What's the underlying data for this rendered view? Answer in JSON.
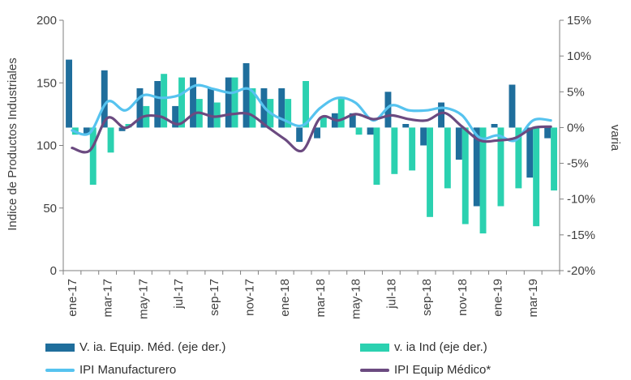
{
  "chart_data": {
    "type": "bar",
    "categories": [
      "ene-17",
      "feb-17",
      "mar-17",
      "abr-17",
      "may-17",
      "jun-17",
      "jul-17",
      "ago-17",
      "sep-17",
      "oct-17",
      "nov-17",
      "dic-17",
      "ene-18",
      "feb-18",
      "mar-18",
      "abr-18",
      "may-18",
      "jun-18",
      "jul-18",
      "ago-18",
      "sep-18",
      "oct-18",
      "nov-18",
      "dic-18",
      "ene-19",
      "feb-19",
      "mar-19",
      "abr-19"
    ],
    "x_tick_labels": [
      "ene-17",
      "mar-17",
      "may-17",
      "jul-17",
      "sep-17",
      "nov-17",
      "ene-18",
      "mar-18",
      "may-18",
      "jul-18",
      "sep-18",
      "nov-18",
      "ene-19",
      "mar-19"
    ],
    "left_axis": {
      "label": "Indice de Productos Industriales",
      "ylim": [
        0,
        200
      ],
      "ticks": [
        "0",
        "50",
        "100",
        "150",
        "200"
      ]
    },
    "right_axis": {
      "label": "varia",
      "ylim": [
        -20,
        15
      ],
      "ticks": [
        "-20%",
        "-15%",
        "-10%",
        "-5%",
        "0%",
        "5%",
        "10%",
        "15%"
      ]
    },
    "bar_series": [
      {
        "name": "V. ia. Equip. Méd. (eje der.)",
        "axis": "right",
        "color": "#1f6e9c",
        "values": [
          9.5,
          -1.0,
          8.0,
          -0.5,
          5.5,
          6.5,
          3.0,
          7.0,
          5.5,
          7.0,
          9.0,
          5.5,
          5.5,
          -2.0,
          -1.5,
          2.0,
          2.0,
          -1.0,
          5.0,
          0.5,
          -2.5,
          3.5,
          -4.5,
          -11.0,
          0.5,
          6.0,
          -7.0,
          -1.5
        ]
      },
      {
        "name": "v. ia Ind (eje der.)",
        "axis": "right",
        "color": "#2bd1b0",
        "values": [
          -1.0,
          -8.0,
          -3.5,
          0.5,
          3.0,
          7.5,
          7.0,
          4.0,
          3.5,
          7.0,
          5.5,
          4.0,
          4.0,
          6.5,
          1.5,
          4.0,
          -1.0,
          -8.0,
          -6.5,
          -6.0,
          -12.5,
          -8.5,
          -13.5,
          -14.8,
          -11.0,
          -8.5,
          -13.8,
          -8.8
        ]
      }
    ],
    "line_series": [
      {
        "name": "IPI Manufacturero",
        "axis": "left",
        "color": "#56c3ef",
        "values": [
          112,
          110,
          135,
          128,
          140,
          138,
          140,
          148,
          145,
          142,
          145,
          128,
          120,
          116,
          130,
          138,
          134,
          120,
          132,
          128,
          128,
          130,
          124,
          106,
          108,
          104,
          120,
          120
        ]
      },
      {
        "name": "IPI Equip Médico*",
        "axis": "left",
        "color": "#6b4a80",
        "values": [
          98,
          96,
          122,
          114,
          123,
          123,
          117,
          126,
          123,
          125,
          125,
          115,
          105,
          96,
          122,
          120,
          125,
          121,
          124,
          121,
          120,
          126,
          115,
          104,
          104,
          106,
          114,
          115
        ]
      }
    ],
    "legend_position": "bottom",
    "grid": false
  },
  "colors": {
    "axis": "#7f7f7f",
    "text": "#404040"
  }
}
